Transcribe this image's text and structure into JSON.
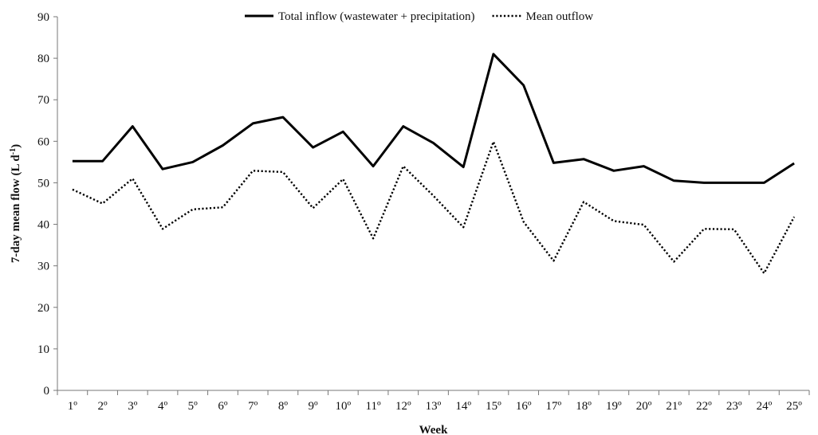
{
  "chart_data": {
    "type": "line",
    "title": "",
    "xlabel": "Week",
    "ylabel": "7-day mean flow (L d",
    "ylabel_sup": "-1",
    "ylabel_suffix": ")",
    "categories": [
      "1º",
      "2º",
      "3º",
      "4º",
      "5º",
      "6º",
      "7º",
      "8º",
      "9º",
      "10º",
      "11º",
      "12º",
      "13º",
      "14º",
      "15º",
      "16º",
      "17º",
      "18º",
      "19º",
      "20º",
      "21º",
      "22º",
      "23º",
      "24º",
      "25º"
    ],
    "ylim": [
      0,
      90
    ],
    "yticks": [
      "0",
      "10",
      "20",
      "30",
      "40",
      "50",
      "60",
      "70",
      "80",
      "90"
    ],
    "grid": false,
    "legend": "top",
    "series": [
      {
        "name": "Total inflow (wastewater + precipitation)",
        "style": "solid",
        "color": "#000000",
        "values": [
          55.2,
          55.2,
          63.6,
          53.3,
          55.0,
          59.0,
          64.3,
          65.8,
          58.5,
          62.3,
          54.0,
          63.6,
          59.6,
          53.8,
          81.0,
          73.5,
          54.8,
          55.7,
          52.9,
          54.0,
          50.5,
          50.0,
          50.0,
          50.0,
          54.7
        ]
      },
      {
        "name": "Mean outflow",
        "style": "dotted",
        "color": "#000000",
        "values": [
          48.4,
          45.0,
          51.0,
          38.9,
          43.6,
          44.1,
          52.9,
          52.6,
          43.9,
          50.9,
          36.6,
          54.0,
          46.9,
          39.3,
          59.9,
          40.6,
          31.2,
          45.4,
          40.8,
          39.9,
          31.0,
          38.9,
          38.8,
          28.2,
          41.8
        ]
      }
    ]
  }
}
